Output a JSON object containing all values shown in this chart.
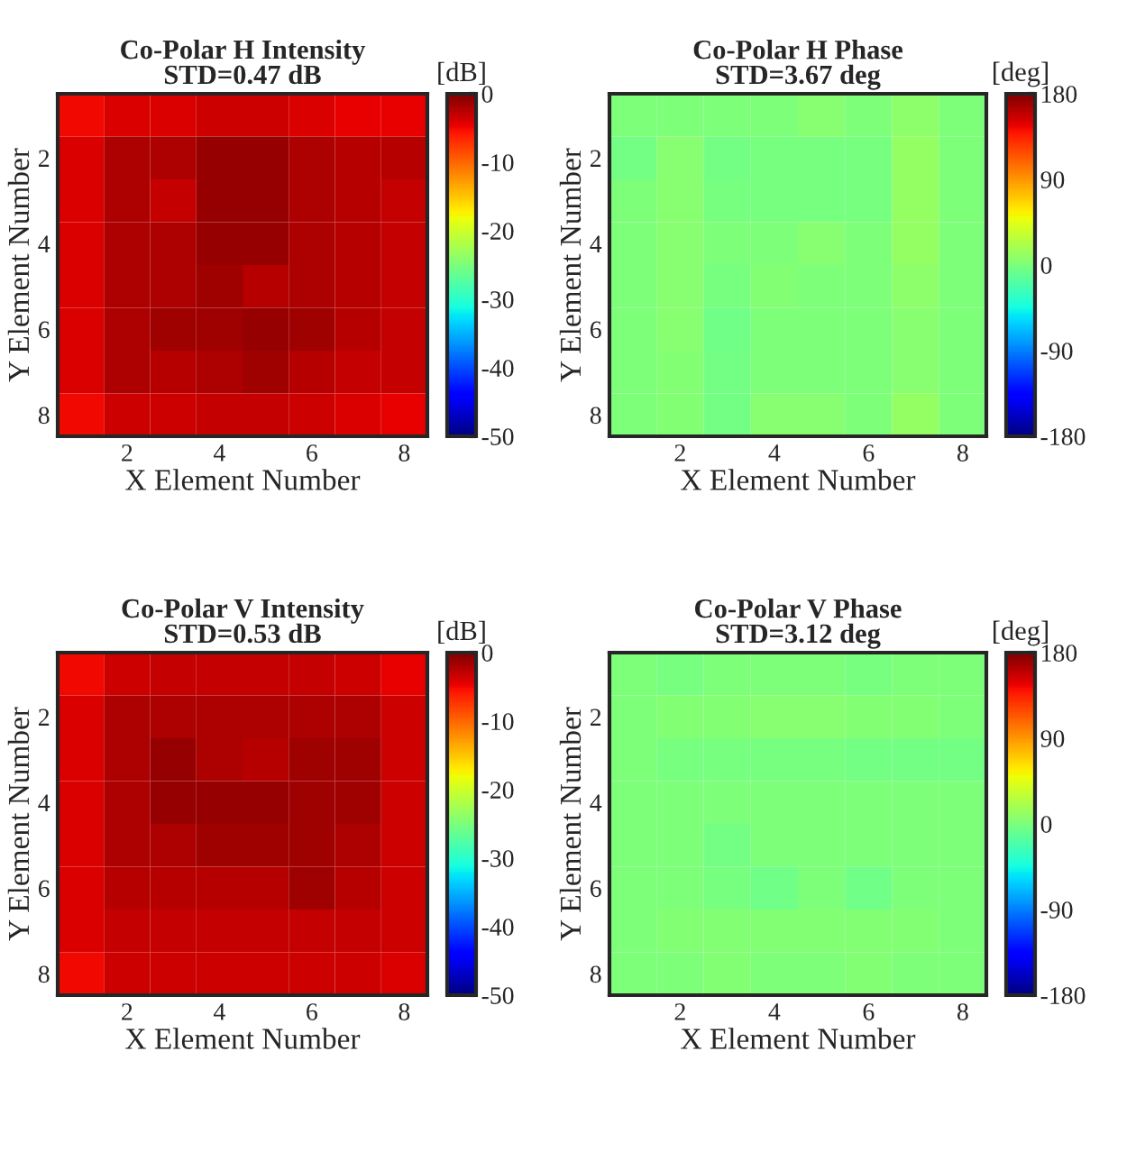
{
  "chart_data": [
    {
      "type": "heatmap",
      "title": "Co-Polar H Intensity\nSTD=0.47 dB",
      "xlabel": "X Element Number",
      "ylabel": "Y Element Number",
      "clabel": "[dB]",
      "categories": [
        null,
        "2",
        null,
        "4",
        null,
        "6",
        null,
        "8"
      ],
      "y_categories": [
        null,
        "2",
        null,
        "4",
        null,
        "6",
        null,
        "8"
      ],
      "cells": [
        [
          -5,
          -4,
          -4,
          -3.5,
          -3.5,
          -4,
          -4.5,
          -4.5
        ],
        [
          -4,
          -2,
          -2,
          -1,
          -1,
          -2,
          -2.5,
          -2.5
        ],
        [
          -4,
          -2,
          -3,
          -1,
          -1,
          -2,
          -2.5,
          -3
        ],
        [
          -4,
          -2,
          -2,
          -1,
          -1,
          -2,
          -2.5,
          -3
        ],
        [
          -4,
          -2,
          -2,
          -1.5,
          -2.5,
          -2,
          -2.5,
          -3
        ],
        [
          -4,
          -2,
          -1.5,
          -1.5,
          -1,
          -1.5,
          -2.5,
          -3
        ],
        [
          -4,
          -2,
          -2.5,
          -2,
          -1.5,
          -2.5,
          -3,
          -3
        ],
        [
          -5,
          -3.5,
          -3.5,
          -3,
          -3,
          -3.5,
          -4,
          -4.5
        ]
      ],
      "clim": [
        -50,
        0
      ],
      "cticks": [
        0,
        -10,
        -20,
        -30,
        -40,
        -50
      ]
    },
    {
      "type": "heatmap",
      "title": "Co-Polar H Phase\nSTD=3.67 deg",
      "xlabel": "X Element Number",
      "ylabel": "Y Element Number",
      "clabel": "[deg]",
      "categories": [
        null,
        "2",
        null,
        "4",
        null,
        "6",
        null,
        "8"
      ],
      "y_categories": [
        null,
        "2",
        null,
        "4",
        null,
        "6",
        null,
        "8"
      ],
      "cells": [
        [
          0,
          0,
          0,
          0,
          5,
          0,
          8,
          0
        ],
        [
          -4,
          5,
          -4,
          -2,
          -2,
          -2,
          10,
          0
        ],
        [
          0,
          5,
          -2,
          -2,
          -2,
          -2,
          10,
          0
        ],
        [
          0,
          5,
          0,
          0,
          5,
          0,
          10,
          0
        ],
        [
          0,
          5,
          -2,
          3,
          0,
          0,
          8,
          0
        ],
        [
          0,
          5,
          -5,
          0,
          0,
          0,
          5,
          0
        ],
        [
          0,
          3,
          -4,
          0,
          0,
          0,
          5,
          0
        ],
        [
          0,
          3,
          -3,
          5,
          5,
          0,
          10,
          0
        ]
      ],
      "clim": [
        -180,
        180
      ],
      "cticks": [
        180,
        90,
        0,
        -90,
        -180
      ]
    },
    {
      "type": "heatmap",
      "title": "Co-Polar V Intensity\nSTD=0.53 dB",
      "xlabel": "X Element Number",
      "ylabel": "Y Element Number",
      "clabel": "[dB]",
      "categories": [
        null,
        "2",
        null,
        "4",
        null,
        "6",
        null,
        "8"
      ],
      "y_categories": [
        null,
        "2",
        null,
        "4",
        null,
        "6",
        null,
        "8"
      ],
      "cells": [
        [
          -5,
          -3.5,
          -3,
          -3,
          -3,
          -3,
          -3.5,
          -4.5
        ],
        [
          -4,
          -2,
          -2,
          -2,
          -2,
          -2,
          -2,
          -3.5
        ],
        [
          -4,
          -2,
          -1,
          -2,
          -2.5,
          -1.5,
          -1.5,
          -3.5
        ],
        [
          -4,
          -2,
          -1,
          -1,
          -1,
          -1.5,
          -1.5,
          -3.5
        ],
        [
          -4,
          -2,
          -2,
          -1.5,
          -1.5,
          -1.5,
          -2,
          -3.5
        ],
        [
          -4,
          -2.5,
          -2.5,
          -2.5,
          -2.5,
          -1.5,
          -2.5,
          -3.5
        ],
        [
          -4,
          -3,
          -3,
          -3,
          -3,
          -3,
          -3,
          -3.5
        ],
        [
          -5,
          -3.5,
          -3.5,
          -3.5,
          -3.5,
          -3.5,
          -3.5,
          -4
        ]
      ],
      "clim": [
        -50,
        0
      ],
      "cticks": [
        0,
        -10,
        -20,
        -30,
        -40,
        -50
      ]
    },
    {
      "type": "heatmap",
      "title": "Co-Polar V Phase\nSTD=3.12 deg",
      "xlabel": "X Element Number",
      "ylabel": "Y Element Number",
      "clabel": "[deg]",
      "categories": [
        null,
        "2",
        null,
        "4",
        null,
        "6",
        null,
        "8"
      ],
      "y_categories": [
        null,
        "2",
        null,
        "4",
        null,
        "6",
        null,
        "8"
      ],
      "cells": [
        [
          0,
          -2,
          0,
          0,
          0,
          -2,
          0,
          0
        ],
        [
          0,
          3,
          3,
          5,
          5,
          3,
          3,
          0
        ],
        [
          0,
          -2,
          -2,
          -2,
          -2,
          -3,
          -4,
          -4
        ],
        [
          0,
          0,
          0,
          0,
          0,
          0,
          0,
          0
        ],
        [
          0,
          0,
          -3,
          0,
          0,
          0,
          0,
          0
        ],
        [
          0,
          0,
          -2,
          -5,
          0,
          -5,
          0,
          0
        ],
        [
          0,
          3,
          3,
          3,
          3,
          3,
          3,
          0
        ],
        [
          0,
          0,
          3,
          0,
          0,
          3,
          0,
          0
        ]
      ],
      "clim": [
        -180,
        180
      ],
      "cticks": [
        180,
        90,
        0,
        -90,
        -180
      ]
    }
  ]
}
